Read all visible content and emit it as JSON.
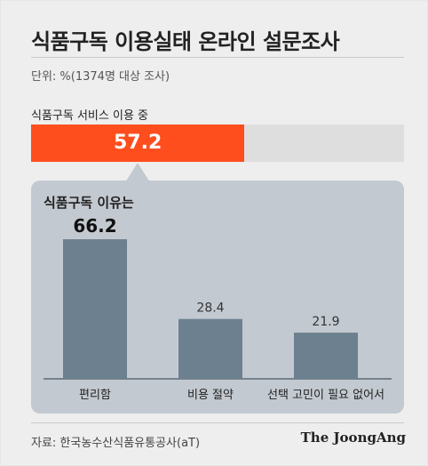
{
  "title": "식품구독 이용실태 온라인 설문조사",
  "unit_note": "단위: %(1374명 대상 조사)",
  "usage": {
    "label": "식품구독 서비스 이용 중",
    "value": 57.2,
    "value_text": "57.2",
    "max": 100,
    "fill_color": "#ff4e1e",
    "track_color": "#dedede"
  },
  "panel": {
    "title": "식품구독 이유는",
    "background_color": "#c3c9d0"
  },
  "chart_data": {
    "type": "bar",
    "title": "식품구독 이유는",
    "categories": [
      "편리함",
      "비용 절약",
      "선택 고민이 필요 없어서"
    ],
    "values": [
      66.2,
      28.4,
      21.9
    ],
    "value_labels": [
      "66.2",
      "28.4",
      "21.9"
    ],
    "highlight_index": 0,
    "ylim": [
      0,
      70
    ],
    "grid": false,
    "bar_color": "#6d808f"
  },
  "source": "자료: 한국농수산식품유통공사(aT)",
  "brand": "The JoongAng"
}
